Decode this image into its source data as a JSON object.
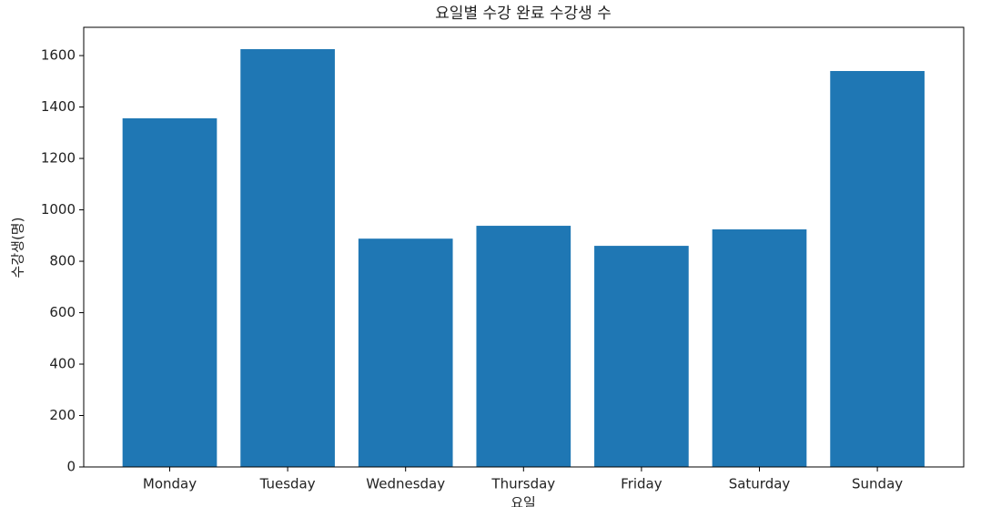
{
  "chart_data": {
    "type": "bar",
    "title": "요일별 수강 완료 수강생 수",
    "x_label": "요일",
    "y_label": "수강생(명)",
    "categories": [
      "Monday",
      "Tuesday",
      "Wednesday",
      "Thursday",
      "Friday",
      "Saturday",
      "Sunday"
    ],
    "values": [
      1356,
      1625,
      888,
      938,
      860,
      924,
      1540
    ],
    "color": "#1f77b4",
    "ylim": [
      0,
      1710
    ],
    "yticks": [
      0,
      200,
      400,
      600,
      800,
      1000,
      1200,
      1400,
      1600
    ],
    "grid": false
  }
}
